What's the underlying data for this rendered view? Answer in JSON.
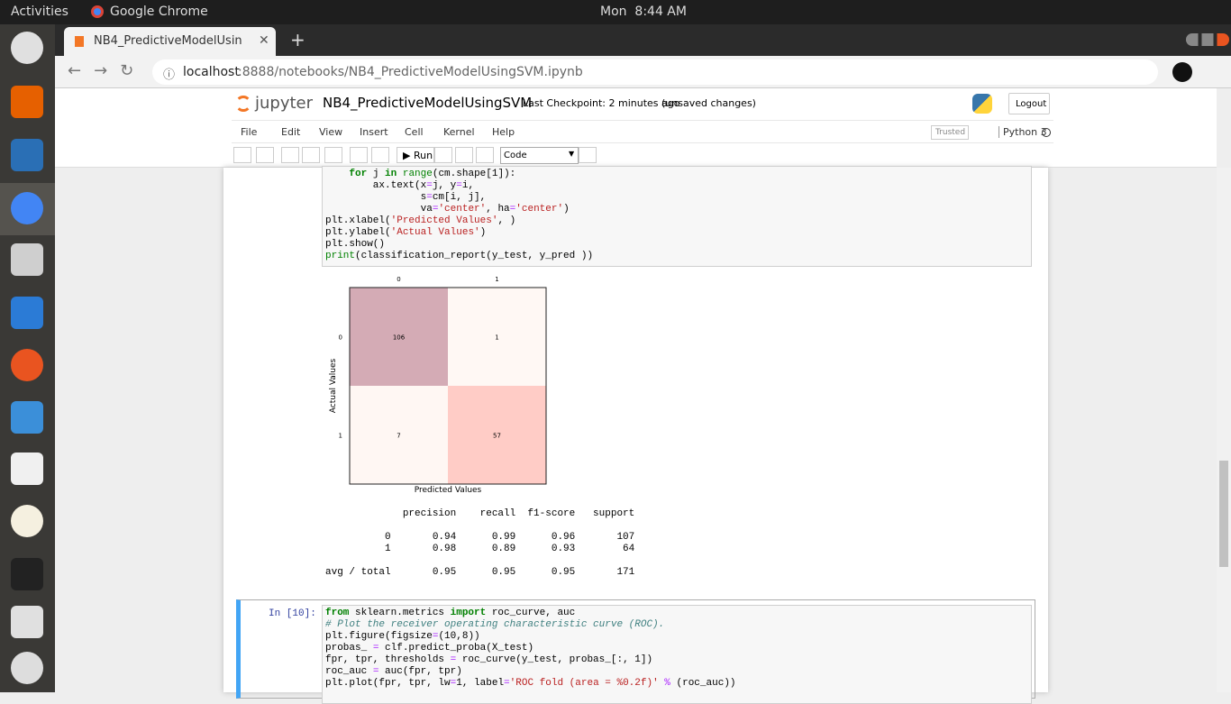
{
  "topbar": {
    "activities": "Activities",
    "app": "Google Chrome",
    "clock": "Mon  8:44 AM"
  },
  "browser": {
    "tab": "NB4_PredictiveModelUsin",
    "url_host": "localhost",
    "url_rest": ":8888/notebooks/NB4_PredictiveModelUsingSVM.ipynb"
  },
  "notebook": {
    "logo": "jupyter",
    "name": "NB4_PredictiveModelUsingSVM",
    "checkpoint": "Last Checkpoint: 2 minutes ago",
    "unsaved": "(unsaved changes)",
    "logout": "Logout",
    "menu": [
      "File",
      "Edit",
      "View",
      "Insert",
      "Cell",
      "Kernel",
      "Help"
    ],
    "trusted": "Trusted",
    "kernel": "Python 3",
    "run": "Run",
    "cell_type": "Code"
  },
  "cell1": {
    "code": [
      "    for j in range(cm.shape[1]):",
      "        ax.text(x=j, y=i,",
      "                s=cm[i, j],",
      "                va='center', ha='center')",
      "plt.xlabel('Predicted Values', )",
      "plt.ylabel('Actual Values')",
      "plt.show()",
      "print(classification_report(y_test, y_pred ))"
    ]
  },
  "heatmap": {
    "xticks": [
      "0",
      "1"
    ],
    "yticks": [
      "0",
      "1"
    ],
    "cells": [
      [
        106,
        1
      ],
      [
        7,
        57
      ]
    ],
    "cell_colors": [
      [
        "#d4abb5",
        "#fff8f4"
      ],
      [
        "#fff7f3",
        "#ffccc6"
      ]
    ],
    "xlabel": "Predicted Values",
    "ylabel": "Actual Values"
  },
  "report": {
    "lines": [
      "             precision    recall  f1-score   support",
      "          0       0.94      0.99      0.96       107",
      "          1       0.98      0.89      0.93        64",
      "avg / total       0.95      0.95      0.95       171"
    ]
  },
  "cell2": {
    "prompt": "In [10]:",
    "code": [
      "from sklearn.metrics import roc_curve, auc",
      "# Plot the receiver operating characteristic curve (ROC).",
      "plt.figure(figsize=(10,8))",
      "probas_ = clf.predict_proba(X_test)",
      "fpr, tpr, thresholds = roc_curve(y_test, probas_[:, 1])",
      "roc_auc = auc(fpr, tpr)",
      "plt.plot(fpr, tpr, lw=1, label='ROC fold (area = %0.2f)' % (roc_auc))"
    ]
  }
}
